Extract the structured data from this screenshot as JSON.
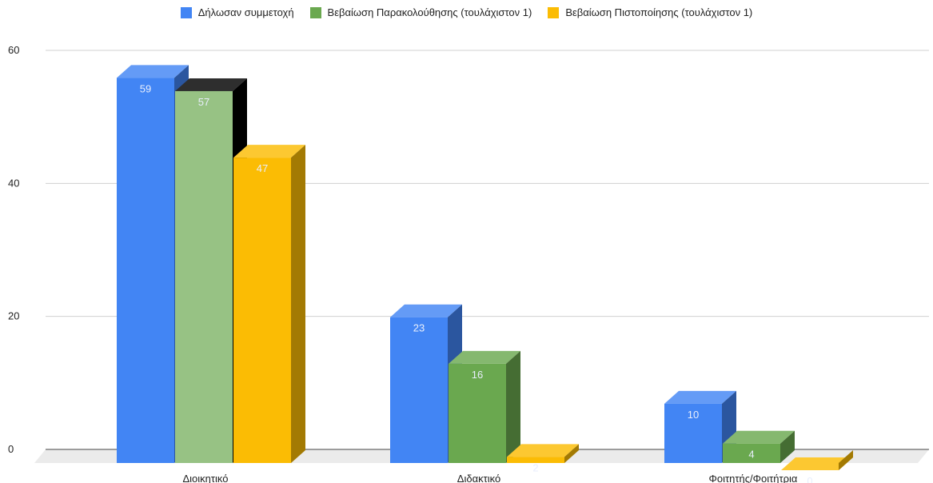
{
  "chart_data": {
    "type": "bar",
    "title": "",
    "xlabel": "",
    "ylabel": "",
    "ylim": [
      0,
      60
    ],
    "yticks": [
      0,
      20,
      40,
      60
    ],
    "grid": true,
    "legend_position": "top-center",
    "categories": [
      "Διοικητικό",
      "Διδακτικό",
      "Φοιτητής/Φοιτήτρια"
    ],
    "series": [
      {
        "name": "Δήλωσαν συμμετοχή",
        "values": [
          59,
          23,
          10
        ],
        "color": "#4285f4"
      },
      {
        "name": "Βεβαίωση Παρακολούθησης (τουλάχιστον 1)",
        "values": [
          57,
          16,
          4
        ],
        "color": "#6aa84f"
      },
      {
        "name": "Βεβαίωση Πιστοποίησης (τουλάχιστον 1)",
        "values": [
          47,
          2,
          0
        ],
        "color": "#fbbc04"
      }
    ]
  }
}
